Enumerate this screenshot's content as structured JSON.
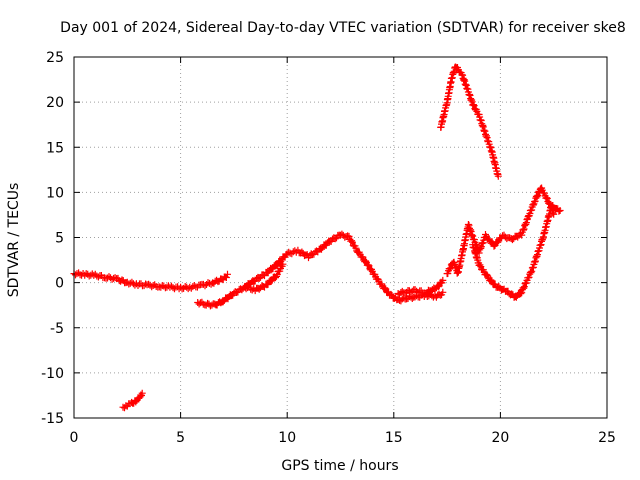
{
  "chart_data": {
    "type": "scatter",
    "title": "Day 001 of 2024, Sidereal Day-to-day VTEC variation (SDTVAR) for receiver ske8",
    "xlabel": "GPS time / hours",
    "ylabel": "SDTVAR / TECUs",
    "xlim": [
      0,
      25
    ],
    "ylim": [
      -15,
      25
    ],
    "xticks": [
      "0",
      "5",
      "10",
      "15",
      "20",
      "25"
    ],
    "yticks": [
      "25",
      "20",
      "15",
      "10",
      "5",
      "0",
      "-5",
      "-10",
      "-15"
    ],
    "grid": true,
    "marker": "plus",
    "series": [
      {
        "name": "SDTVAR",
        "color": "#ff0000",
        "segments": [
          {
            "x": [
              0.0,
              0.5,
              1.0,
              1.5,
              2.0,
              2.5,
              3.0,
              3.5,
              4.0,
              4.5,
              5.0,
              5.5,
              6.0,
              6.5,
              7.0,
              7.2
            ],
            "y": [
              1.0,
              0.9,
              0.8,
              0.6,
              0.4,
              0.0,
              -0.2,
              -0.3,
              -0.4,
              -0.5,
              -0.6,
              -0.5,
              -0.3,
              0.0,
              0.4,
              0.8
            ]
          },
          {
            "x": [
              2.3,
              2.5,
              2.7,
              2.9,
              3.1,
              3.2
            ],
            "y": [
              -13.8,
              -13.6,
              -13.4,
              -13.1,
              -12.7,
              -12.3
            ]
          },
          {
            "x": [
              5.8,
              6.2,
              6.6,
              7.0,
              7.5,
              8.0,
              8.5,
              9.0,
              9.5,
              10.0,
              10.5,
              11.0,
              11.5,
              12.0,
              12.5,
              12.9,
              13.3,
              13.8,
              14.3,
              14.8,
              15.2,
              15.6,
              16.0,
              16.5,
              17.0,
              17.3
            ],
            "y": [
              -2.2,
              -2.4,
              -2.5,
              -2.0,
              -1.2,
              -0.5,
              0.3,
              1.0,
              2.0,
              3.2,
              3.5,
              2.9,
              3.6,
              4.6,
              5.3,
              5.0,
              3.5,
              1.9,
              0.1,
              -1.3,
              -2.0,
              -1.7,
              -1.6,
              -1.4,
              -1.5,
              -1.2
            ]
          },
          {
            "x": [
              8.0,
              8.5,
              9.0,
              9.5,
              9.8
            ],
            "y": [
              -0.5,
              -0.8,
              -0.3,
              0.8,
              2.0
            ]
          },
          {
            "x": [
              15.2,
              15.6,
              16.0,
              16.5,
              17.0,
              17.3
            ],
            "y": [
              -1.2,
              -1.0,
              -0.9,
              -1.1,
              -0.6,
              0.2
            ]
          },
          {
            "x": [
              17.5,
              17.8,
              18.0,
              18.3,
              18.5,
              18.7,
              19.0,
              19.3,
              19.7,
              20.1,
              20.5,
              21.0,
              21.3,
              21.6,
              21.9,
              22.2,
              22.5
            ],
            "y": [
              1.0,
              2.3,
              1.0,
              4.2,
              6.4,
              5.1,
              3.4,
              5.2,
              4.1,
              5.2,
              4.8,
              5.4,
              7.2,
              9.0,
              10.5,
              9.2,
              7.7
            ]
          },
          {
            "x": [
              18.7,
              19.0,
              19.4,
              19.8,
              20.3,
              20.7,
              21.0,
              21.5,
              22.0,
              22.4,
              22.8
            ],
            "y": [
              4.2,
              2.0,
              0.6,
              -0.4,
              -1.0,
              -1.6,
              -1.0,
              1.5,
              5.0,
              8.5,
              7.9
            ]
          },
          {
            "x": [
              17.2,
              17.5,
              17.7,
              17.9,
              18.2,
              18.4,
              18.7,
              19.0,
              19.3,
              19.6,
              19.9
            ],
            "y": [
              17.2,
              20.0,
              22.5,
              24.0,
              23.0,
              21.8,
              19.8,
              18.5,
              16.5,
              14.5,
              11.7
            ]
          }
        ]
      }
    ]
  }
}
